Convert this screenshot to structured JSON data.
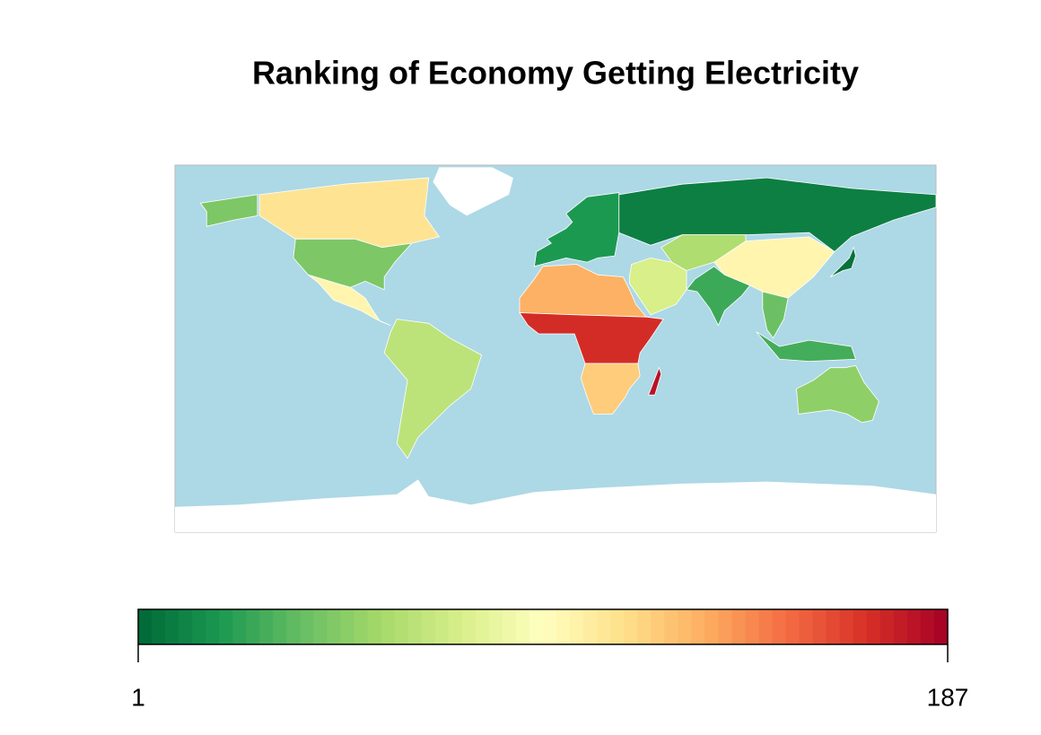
{
  "chart_data": {
    "type": "choropleth",
    "title": "Ranking of Economy   Getting Electricity",
    "values": [
      10,
      110,
      45,
      45,
      100,
      65,
      20,
      130,
      170,
      120,
      180,
      75,
      28,
      100,
      60,
      40,
      30,
      50,
      5
    ],
    "colors": [
      "#006837",
      "#1a9850",
      "#66bd63",
      "#a6d96a",
      "#d9ef8b",
      "#ffffbf",
      "#fee08b",
      "#fdae61",
      "#f46d43",
      "#d73027",
      "#a50026"
    ],
    "ocean_color": "#add8e6",
    "colorbar": {
      "lim": [
        1,
        187
      ],
      "ticks": [
        1,
        187
      ]
    }
  }
}
